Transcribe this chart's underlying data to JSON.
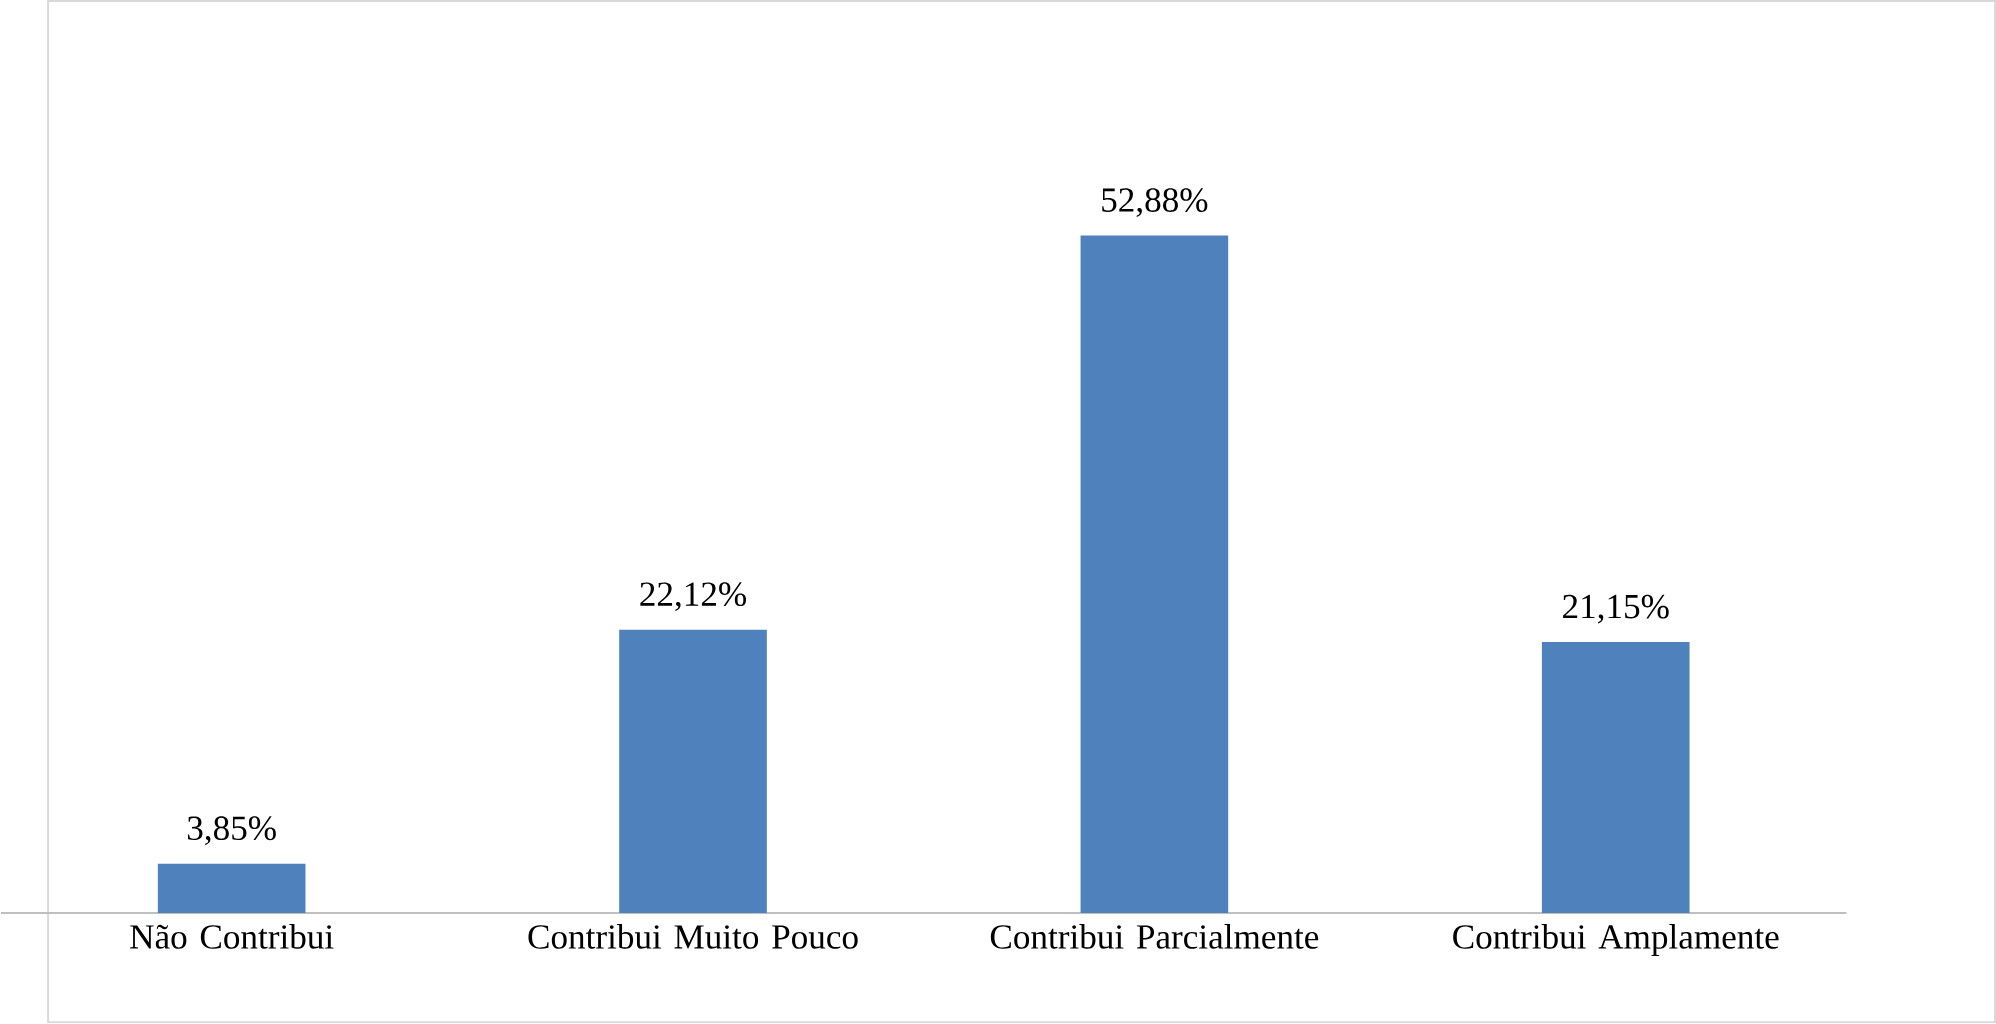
{
  "chart_data": {
    "type": "bar",
    "categories": [
      "Não Contribui",
      "Contribui Muito Pouco",
      "Contribui Parcialmente",
      "Contribui Amplamente"
    ],
    "values": [
      3.85,
      22.12,
      52.88,
      21.15
    ],
    "value_labels": [
      "3,85%",
      "22,12%",
      "52,88%",
      "21,15%"
    ],
    "color": "#4f81bd"
  }
}
